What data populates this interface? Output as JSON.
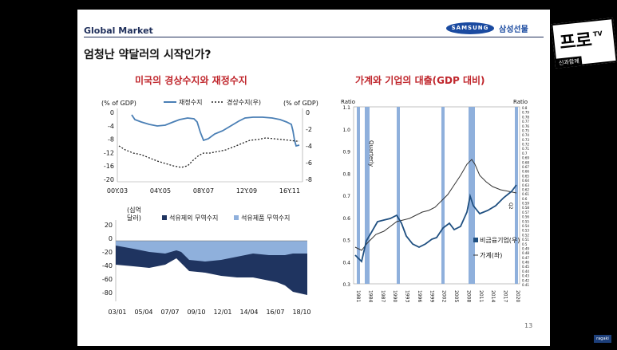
{
  "slide": {
    "section": "Global Market",
    "brand_logo": "SAMSUNG",
    "brand_name": "삼성선물",
    "title": "엄청난 약달러의 시작인가?",
    "page_number": "13"
  },
  "left_title": "미국의 경상수지와 재정수지",
  "right_title": "가계와 기업의 대출(GDP 대비)",
  "chart_top_left": {
    "type": "line",
    "left_unit": "(% of GDP)",
    "right_unit": "(% of GDP)",
    "legend": [
      "재정수지",
      "경상수지(우)"
    ],
    "x_ticks": [
      "00Y.03",
      "04Y.05",
      "08Y.07",
      "12Y.09",
      "16Y.11"
    ],
    "left_ticks": [
      "0",
      "-4",
      "-8",
      "-12",
      "-16",
      "-20"
    ],
    "right_ticks": [
      "0",
      "-2",
      "-4",
      "-6",
      "-8"
    ],
    "left_ylim": [
      -20,
      0
    ],
    "right_ylim": [
      -8,
      0
    ],
    "colors": {
      "fiscal": "#4a7fb5",
      "current": "#222222"
    }
  },
  "chart_bottom_left": {
    "type": "area",
    "unit_line1": "(십억",
    "unit_line2": "달러)",
    "legend": [
      "석유제외 무역수지",
      "석유제품 무역수지"
    ],
    "y_ticks": [
      "20",
      "0",
      "-20",
      "-40",
      "-60",
      "-80"
    ],
    "x_ticks": [
      "03/01",
      "05/04",
      "07/07",
      "09/10",
      "12/01",
      "14/04",
      "16/07",
      "18/10"
    ],
    "ylim": [
      -80,
      20
    ],
    "colors": {
      "non_oil": "#1f3460",
      "oil": "#8fb0dc"
    }
  },
  "chart_right": {
    "type": "line",
    "left_label": "Ratio",
    "right_label": "Ratio",
    "left_ticks": [
      "1.1",
      "1.0",
      "0.9",
      "0.8",
      "0.7",
      "0.6",
      "0.5",
      "0.4",
      "0.3"
    ],
    "right_ticks": [
      "0.8",
      "0.79",
      "0.78",
      "0.77",
      "0.76",
      "0.75",
      "0.74",
      "0.73",
      "0.72",
      "0.71",
      "0.7",
      "0.69",
      "0.68",
      "0.67",
      "0.66",
      "0.65",
      "0.64",
      "0.63",
      "0.62",
      "0.61",
      "0.6",
      "0.59",
      "0.58",
      "0.57",
      "0.56",
      "0.55",
      "0.54",
      "0.53",
      "0.52",
      "0.51",
      "0.5",
      "0.49",
      "0.48",
      "0.47",
      "0.46",
      "0.45",
      "0.44",
      "0.43",
      "0.42",
      "0.41"
    ],
    "x_ticks": [
      "1981",
      "1984",
      "1987",
      "1990",
      "1993",
      "1996",
      "1999",
      "2002",
      "2005",
      "2008",
      "2011",
      "2014",
      "2017",
      "2020"
    ],
    "annotation": "Quarterly",
    "end_label": "Q2",
    "legend": [
      "비금융기업(우)",
      "가계(좌)"
    ],
    "colors": {
      "corporate": "#1f4f80",
      "household": "#333333",
      "recession": "#8fb0dc"
    }
  },
  "watermark": {
    "main": "프로",
    "tv": "TV",
    "sub": "신과함께"
  },
  "yt_badge": "ragaki"
}
